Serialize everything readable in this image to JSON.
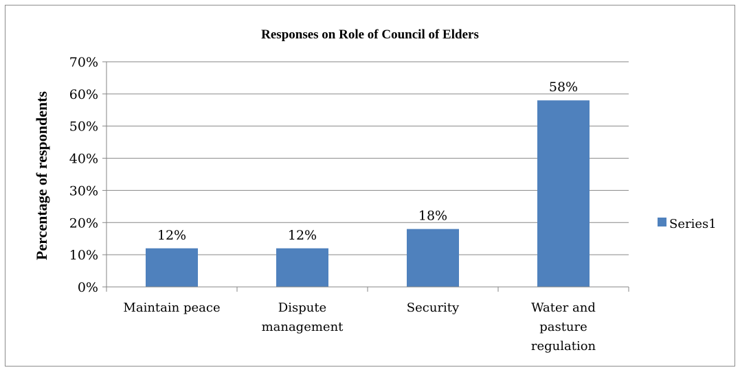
{
  "chart_data": {
    "type": "bar",
    "title": "Responses on Role of Council of Elders",
    "xlabel": "",
    "ylabel": "Percentage of respondents",
    "categories": [
      [
        "Maintain peace"
      ],
      [
        "Dispute",
        "management"
      ],
      [
        "Security"
      ],
      [
        "Water and",
        "pasture",
        "regulation"
      ]
    ],
    "series": [
      {
        "name": "Series1",
        "values": [
          12,
          12,
          18,
          58
        ],
        "data_labels": [
          "12%",
          "12%",
          "18%",
          "58%"
        ],
        "color": "#4f81bd"
      }
    ],
    "ylim": [
      0,
      70
    ],
    "ytick_step": 10,
    "ytick_labels": [
      "0%",
      "10%",
      "20%",
      "30%",
      "40%",
      "50%",
      "60%",
      "70%"
    ],
    "grid": true,
    "legend_position": "right"
  }
}
